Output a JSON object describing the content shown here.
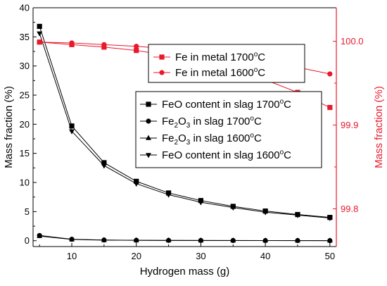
{
  "chart_data": {
    "type": "line",
    "xlabel": "Hydrogen mass (g)",
    "ylabel_left": "Mass fraction (%)",
    "ylabel_right": "Mass fraction (%)",
    "xlim": [
      4,
      51
    ],
    "ylim_left": [
      -1,
      40
    ],
    "ylim_right": [
      99.755,
      100.04
    ],
    "x_ticks": [
      10,
      20,
      30,
      40,
      50
    ],
    "y_left_ticks": [
      0,
      5,
      10,
      15,
      20,
      25,
      30,
      35,
      40
    ],
    "y_right_ticks": [
      99.8,
      99.9,
      100.0
    ],
    "x_tick_labels": [
      "10",
      "20",
      "30",
      "40",
      "50"
    ],
    "y_left_tick_labels": [
      "0",
      "5",
      "10",
      "15",
      "20",
      "25",
      "30",
      "35",
      "40"
    ],
    "y_right_tick_labels": [
      "99.8",
      "99.9",
      "100.0"
    ],
    "x": [
      5,
      10,
      15,
      20,
      25,
      30,
      35,
      40,
      45,
      50
    ],
    "series": [
      {
        "name": "FeO content in slag 1700°C",
        "axis": "left",
        "marker": "square",
        "color": "#000000",
        "values": [
          36.8,
          19.7,
          13.4,
          10.2,
          8.2,
          6.9,
          5.9,
          5.1,
          4.5,
          4.0
        ]
      },
      {
        "name": "Fe2O3 in slag 1700°C",
        "axis": "left",
        "marker": "circle",
        "color": "#000000",
        "values": [
          0.9,
          0.25,
          0.12,
          0.08,
          0.06,
          0.05,
          0.04,
          0.03,
          0.03,
          0.02
        ]
      },
      {
        "name": "Fe2O3 in slag 1600°C",
        "axis": "left",
        "marker": "triangle-up",
        "color": "#000000",
        "values": [
          0.8,
          0.22,
          0.1,
          0.07,
          0.05,
          0.04,
          0.03,
          0.03,
          0.02,
          0.02
        ]
      },
      {
        "name": "FeO content in slag 1600°C",
        "axis": "left",
        "marker": "triangle-down",
        "color": "#000000",
        "values": [
          35.6,
          18.8,
          12.9,
          9.8,
          7.9,
          6.6,
          5.7,
          4.9,
          4.4,
          3.9
        ]
      },
      {
        "name": "Fe in metal 1700°C",
        "axis": "right",
        "marker": "square",
        "color": "#e8192c",
        "values": [
          99.999,
          99.996,
          99.993,
          99.989,
          99.983,
          99.976,
          99.966,
          99.954,
          99.939,
          99.921
        ]
      },
      {
        "name": "Fe in metal 1600°C",
        "axis": "right",
        "marker": "circle",
        "color": "#e8192c",
        "values": [
          99.999,
          99.998,
          99.996,
          99.994,
          99.991,
          99.987,
          99.982,
          99.976,
          99.969,
          99.961
        ]
      }
    ],
    "legend_upper": [
      {
        "label": "Fe in metal 1700",
        "sup": "o",
        "unit": "C"
      },
      {
        "label": "Fe in metal 1600",
        "sup": "o",
        "unit": "C"
      }
    ],
    "legend_lower": [
      {
        "label": "FeO content in slag 1700",
        "sup": "o",
        "unit": "C"
      },
      {
        "pre": "Fe",
        "sub1": "2",
        "mid": "O",
        "sub2": "3",
        "label": " in slag 1700",
        "sup": "o",
        "unit": "C"
      },
      {
        "pre": "Fe",
        "sub1": "2",
        "mid": "O",
        "sub2": "3",
        "label": " in slag 1600",
        "sup": "o",
        "unit": "C"
      },
      {
        "label": "FeO content in slag 1600",
        "sup": "o",
        "unit": "C"
      }
    ],
    "grid": false,
    "legend_placement": "upper-right and center-right",
    "colors": {
      "left_axis": "#000000",
      "right_axis": "#e8192c"
    }
  }
}
